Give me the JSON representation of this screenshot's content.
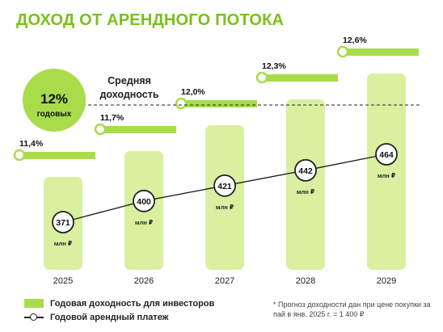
{
  "page": {
    "title": "ДОХОД ОТ АРЕНДНОГО ПОТОКА",
    "footnote": "* Прогноз доходности дан при цене покупки за пай в янв. 2025 г. = 1 400 ₽"
  },
  "badge": {
    "value": "12%",
    "caption": "годовых"
  },
  "average": {
    "label_line1": "Средняя",
    "label_line2": "доходность",
    "value": 12
  },
  "legend": {
    "bar_label": "Годовая доходность для инвесторов",
    "line_label": "Годовой арендный платеж"
  },
  "colors": {
    "title": "#7bc01a",
    "bar_fill": "#d8f0a0",
    "yield_bar": "#a8dc4a",
    "badge": "#a8dc4a",
    "line": "#222222",
    "dashed_line": "#222222"
  },
  "chart_data": {
    "type": "bar",
    "categories": [
      "2025",
      "2026",
      "2027",
      "2028",
      "2029"
    ],
    "series": [
      {
        "name": "Годовая доходность для инвесторов",
        "type": "bar",
        "values": [
          11.4,
          11.7,
          12.0,
          12.3,
          12.6
        ],
        "labels": [
          "11,4%",
          "11,7%",
          "12,0%",
          "12,3%",
          "12,6%"
        ]
      },
      {
        "name": "Годовой арендный платеж",
        "type": "line",
        "values": [
          371,
          400,
          421,
          442,
          464
        ],
        "unit": "млн ₽"
      }
    ],
    "reference_line": {
      "label": "Средняя доходность",
      "value": 12
    }
  }
}
